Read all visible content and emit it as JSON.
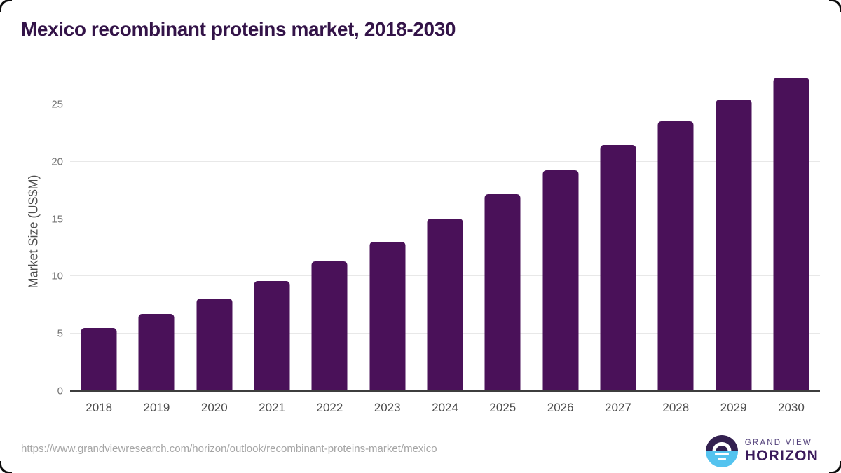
{
  "header": {
    "title": "Mexico recombinant proteins market, 2018-2030"
  },
  "chart_data": {
    "type": "bar",
    "title": "Mexico recombinant proteins market, 2018-2030",
    "categories": [
      "2018",
      "2019",
      "2020",
      "2021",
      "2022",
      "2023",
      "2024",
      "2025",
      "2026",
      "2027",
      "2028",
      "2029",
      "2030"
    ],
    "values": [
      5.5,
      6.7,
      8.1,
      9.6,
      11.3,
      13.05,
      15.05,
      17.15,
      19.25,
      21.45,
      23.55,
      25.45,
      27.3
    ],
    "xlabel": "",
    "ylabel": "Market Size (US$M)",
    "ylim": [
      0,
      28
    ],
    "yticks": [
      0,
      5,
      10,
      15,
      20,
      25
    ],
    "grid": "horizontal",
    "legend": "none",
    "bar_color": "#4a1159"
  },
  "footer": {
    "source_url": "https://www.grandviewresearch.com/horizon/outlook/recombinant-proteins-market/mexico",
    "logo": {
      "line1": "GRAND VIEW",
      "line2": "HORIZON",
      "icon": "sunrise-horizon-icon"
    }
  },
  "colors": {
    "bar": "#4a1159",
    "title_text": "#331348",
    "axis_label_text": "#4d4d4d",
    "tick_text": "#757575",
    "gridline": "#e8e8e8",
    "axis_line": "#3d3d3d",
    "source_text": "#a5a5a5",
    "logo_purple": "#332050",
    "logo_blue": "#54c3ef",
    "background": "#ffffff"
  }
}
